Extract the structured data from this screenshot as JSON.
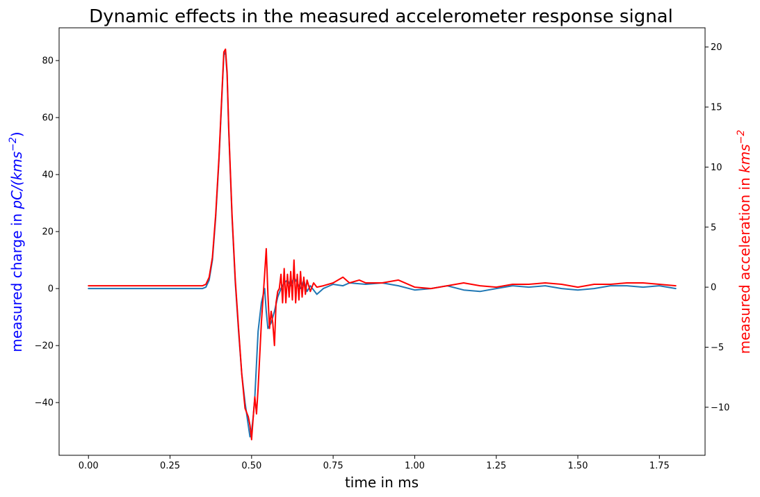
{
  "chart_data": {
    "type": "line",
    "title": "Dynamic effects in the measured accelerometer response signal",
    "xlabel": "time in ms",
    "ylabel_left": {
      "text": "measured charge in ",
      "math": "pC/(kms",
      "exp": "−2",
      "close": ")",
      "color": "#0000ff"
    },
    "ylabel_right": {
      "text": "measured acceleration in ",
      "math": "kms",
      "exp": "−2",
      "color": "#ff0000"
    },
    "xlim": [
      -0.09,
      1.89
    ],
    "ylim_left": [
      -58.5,
      91.5
    ],
    "ylim_right": [
      -14.0,
      21.6
    ],
    "x_ticks": [
      0.0,
      0.25,
      0.5,
      0.75,
      1.0,
      1.25,
      1.5,
      1.75
    ],
    "x_tick_labels": [
      "0.00",
      "0.25",
      "0.50",
      "0.75",
      "1.00",
      "1.25",
      "1.50",
      "1.75"
    ],
    "y_left_ticks": [
      -40,
      -20,
      0,
      20,
      40,
      60,
      80
    ],
    "y_left_tick_labels": [
      "−40",
      "−20",
      "0",
      "20",
      "40",
      "60",
      "80"
    ],
    "y_right_ticks": [
      -10,
      -5,
      0,
      5,
      10,
      15,
      20
    ],
    "y_right_tick_labels": [
      "−10",
      "−5",
      "0",
      "5",
      "10",
      "15",
      "20"
    ],
    "grid": false,
    "series": [
      {
        "axis": "left",
        "color": "#1f77b4",
        "x": [
          0.0,
          0.05,
          0.1,
          0.15,
          0.2,
          0.25,
          0.3,
          0.35,
          0.36,
          0.37,
          0.38,
          0.39,
          0.4,
          0.41,
          0.415,
          0.42,
          0.425,
          0.43,
          0.44,
          0.45,
          0.46,
          0.47,
          0.48,
          0.49,
          0.495,
          0.5,
          0.505,
          0.51,
          0.52,
          0.53,
          0.54,
          0.545,
          0.55,
          0.56,
          0.57,
          0.58,
          0.59,
          0.6,
          0.61,
          0.62,
          0.63,
          0.64,
          0.65,
          0.66,
          0.67,
          0.68,
          0.7,
          0.72,
          0.75,
          0.78,
          0.8,
          0.85,
          0.9,
          0.95,
          1.0,
          1.05,
          1.1,
          1.15,
          1.2,
          1.25,
          1.3,
          1.35,
          1.4,
          1.45,
          1.5,
          1.55,
          1.6,
          1.65,
          1.7,
          1.75,
          1.8
        ],
        "y": [
          0,
          0,
          0,
          0,
          0,
          0,
          0,
          0,
          0.5,
          3,
          10,
          25,
          45,
          70,
          82,
          83,
          75,
          55,
          25,
          2,
          -15,
          -30,
          -40,
          -48,
          -52,
          -50,
          -45,
          -38,
          -15,
          -5,
          0,
          -8,
          -14,
          -12,
          -8,
          -3,
          0,
          2,
          3,
          1,
          4,
          2,
          0,
          3,
          -1,
          1,
          -2,
          0,
          1.5,
          1,
          2,
          1.5,
          2,
          1,
          -0.5,
          0,
          1,
          -0.5,
          -1,
          0,
          1,
          0.5,
          1,
          0,
          -0.5,
          0,
          1,
          1,
          0.5,
          1,
          0
        ]
      },
      {
        "axis": "left",
        "color": "#ff0000",
        "x": [
          0.0,
          0.05,
          0.1,
          0.15,
          0.2,
          0.25,
          0.3,
          0.35,
          0.36,
          0.37,
          0.38,
          0.39,
          0.4,
          0.41,
          0.415,
          0.42,
          0.425,
          0.43,
          0.44,
          0.45,
          0.46,
          0.47,
          0.48,
          0.49,
          0.495,
          0.5,
          0.505,
          0.51,
          0.515,
          0.52,
          0.53,
          0.54,
          0.545,
          0.55,
          0.555,
          0.56,
          0.565,
          0.57,
          0.575,
          0.58,
          0.585,
          0.59,
          0.595,
          0.6,
          0.605,
          0.61,
          0.615,
          0.62,
          0.625,
          0.63,
          0.635,
          0.64,
          0.645,
          0.65,
          0.655,
          0.66,
          0.665,
          0.67,
          0.68,
          0.69,
          0.7,
          0.72,
          0.75,
          0.78,
          0.8,
          0.83,
          0.85,
          0.9,
          0.95,
          1.0,
          1.05,
          1.1,
          1.15,
          1.2,
          1.25,
          1.3,
          1.35,
          1.4,
          1.45,
          1.5,
          1.55,
          1.6,
          1.65,
          1.7,
          1.75,
          1.8
        ],
        "y": [
          1,
          1,
          1,
          1,
          1,
          1,
          1,
          1,
          1.5,
          4,
          11,
          26,
          46,
          71,
          83,
          84,
          76,
          56,
          26,
          3,
          -14,
          -30,
          -42,
          -45,
          -48,
          -53,
          -45,
          -38,
          -44,
          -35,
          -12,
          5,
          14,
          -2,
          -14,
          -8,
          -12,
          -20,
          -5,
          -1,
          0,
          5,
          -5,
          7,
          -5,
          5,
          -3,
          6,
          -4,
          10,
          -5,
          5,
          -4,
          6,
          -3,
          4,
          -2,
          3,
          -1,
          2,
          0.5,
          1,
          2,
          4,
          2,
          3,
          2,
          2,
          3,
          0.5,
          0,
          1,
          2,
          1,
          0.5,
          1.5,
          1.5,
          2,
          1.5,
          0.5,
          1.5,
          1.5,
          2,
          2,
          1.5,
          1
        ]
      }
    ]
  }
}
